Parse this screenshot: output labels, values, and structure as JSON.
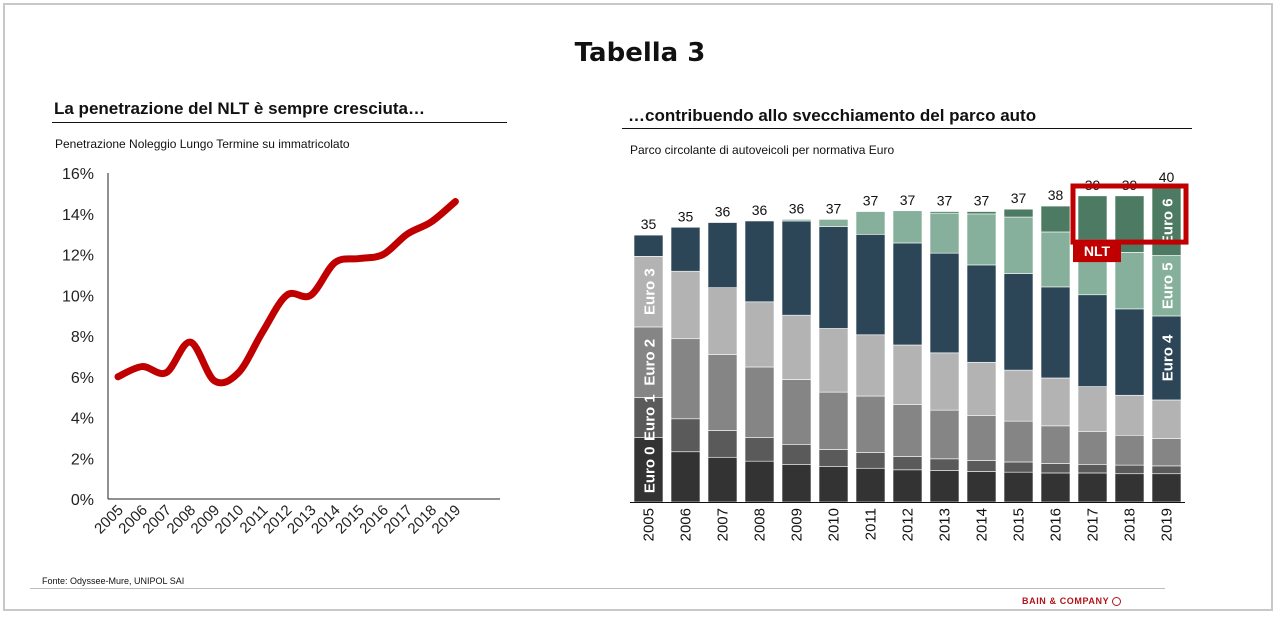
{
  "page": {
    "title": "Tabella 3",
    "source": "Fonte: Odyssee-Mure, UNIPOL SAI",
    "logo": "BAIN & COMPANY"
  },
  "left_panel": {
    "title": "La penetrazione del NLT è sempre cresciuta…",
    "subtitle": "Penetrazione Noleggio Lungo Termine su immatricolato"
  },
  "right_panel": {
    "title": "…contribuendo allo svecchiamento del parco auto",
    "subtitle": "Parco circolante di autoveicoli per normativa Euro"
  },
  "colors": {
    "line": "#c00000",
    "euro0": "#333333",
    "euro1": "#5a5a5a",
    "euro2": "#858585",
    "euro3": "#b3b3b3",
    "euro4": "#2c4658",
    "euro5": "#86b09b",
    "euro6": "#4d7a63",
    "highlight": "#c00000"
  },
  "chart_data": [
    {
      "type": "line",
      "x": [
        "2005",
        "2006",
        "2007",
        "2008",
        "2009",
        "2010",
        "2011",
        "2012",
        "2013",
        "2014",
        "2015",
        "2016",
        "2017",
        "2018",
        "2019"
      ],
      "series": [
        {
          "values": [
            6.0,
            6.5,
            6.2,
            7.7,
            5.8,
            6.2,
            8.2,
            10.0,
            10.0,
            11.6,
            11.8,
            12.0,
            13.0,
            13.6,
            14.6
          ]
        }
      ],
      "yticks": [
        "0%",
        "2%",
        "4%",
        "6%",
        "8%",
        "10%",
        "12%",
        "14%",
        "16%"
      ],
      "ylim": [
        0,
        16
      ],
      "grid": false
    },
    {
      "type": "bar",
      "stacked": true,
      "categories": [
        "2005",
        "2006",
        "2007",
        "2008",
        "2009",
        "2010",
        "2011",
        "2012",
        "2013",
        "2014",
        "2015",
        "2016",
        "2017",
        "2018",
        "2019"
      ],
      "totals": [
        35,
        35,
        36,
        36,
        36,
        37,
        37,
        37,
        37,
        37,
        37,
        38,
        39,
        39,
        40
      ],
      "ylim": [
        0,
        40
      ],
      "series": [
        {
          "name": "Euro 0",
          "values": [
            8.2,
            6.4,
            5.7,
            5.2,
            4.8,
            4.5,
            4.3,
            4.1,
            4.0,
            3.9,
            3.8,
            3.7,
            3.7,
            3.6,
            3.6
          ]
        },
        {
          "name": "Euro 1",
          "values": [
            5.1,
            4.2,
            3.4,
            3.0,
            2.5,
            2.2,
            2.0,
            1.7,
            1.5,
            1.4,
            1.3,
            1.2,
            1.1,
            1.1,
            1.0
          ]
        },
        {
          "name": "Euro 2",
          "values": [
            9.0,
            10.2,
            9.7,
            9.0,
            8.3,
            7.3,
            7.2,
            6.6,
            6.2,
            5.7,
            5.2,
            4.8,
            4.2,
            3.8,
            3.5
          ]
        },
        {
          "name": "Euro 3",
          "values": [
            9.0,
            8.6,
            8.5,
            8.3,
            8.2,
            8.1,
            7.8,
            7.6,
            7.3,
            6.8,
            6.5,
            6.1,
            5.7,
            5.1,
            4.9
          ]
        },
        {
          "name": "Euro 4",
          "values": [
            2.7,
            5.6,
            8.3,
            10.3,
            12.0,
            13.0,
            12.8,
            13.0,
            12.7,
            12.4,
            12.3,
            11.6,
            11.7,
            11.0,
            10.7
          ]
        },
        {
          "name": "Euro 5",
          "values": [
            0,
            0,
            0,
            0,
            0.2,
            0.9,
            2.9,
            4.1,
            5.1,
            6.5,
            7.2,
            7.0,
            7.0,
            7.2,
            7.7
          ]
        },
        {
          "name": "Euro 6",
          "values": [
            0,
            0,
            0,
            0,
            0,
            0,
            0,
            0,
            0.2,
            0.3,
            1.0,
            3.3,
            5.6,
            7.2,
            8.6
          ]
        }
      ],
      "segment_labels": [
        {
          "text": "Euro 0",
          "category": "2005"
        },
        {
          "text": "Euro 1",
          "category": "2005"
        },
        {
          "text": "Euro 2",
          "category": "2005"
        },
        {
          "text": "Euro 3",
          "category": "2005"
        },
        {
          "text": "Euro 4",
          "category": "2019"
        },
        {
          "text": "Euro 5",
          "category": "2019"
        },
        {
          "text": "Euro 6",
          "category": "2019"
        }
      ],
      "annotation": {
        "text": "NLT",
        "categories": [
          "2017",
          "2018",
          "2019"
        ],
        "series": "Euro 6"
      }
    }
  ]
}
